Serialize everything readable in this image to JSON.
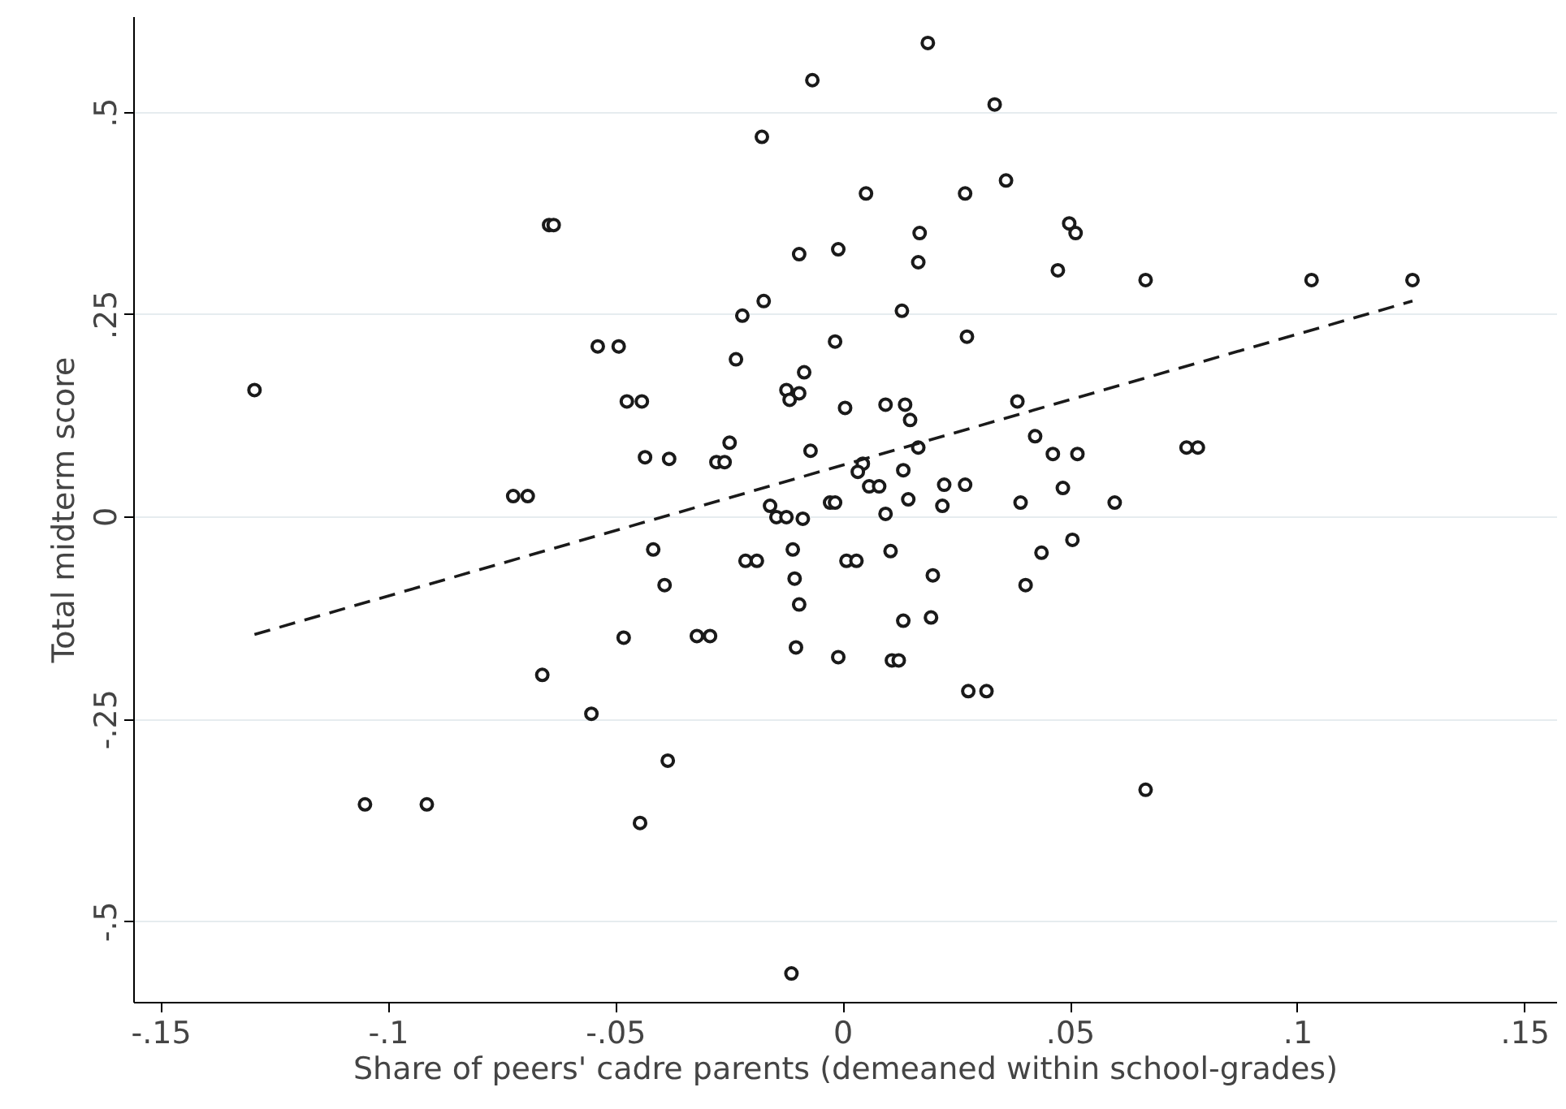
{
  "chart_data": {
    "type": "scatter",
    "xlabel": "Share of peers' cadre parents (demeaned within school-grades)",
    "ylabel": "Total midterm score",
    "xlim": [
      -0.156,
      0.157
    ],
    "ylim": [
      -0.6,
      0.618
    ],
    "xticks": [
      {
        "value": -0.15,
        "label": "-.15"
      },
      {
        "value": -0.1,
        "label": "-.1"
      },
      {
        "value": -0.05,
        "label": "-.05"
      },
      0,
      {
        "value": 0.05,
        "label": ".05"
      },
      {
        "value": 0.1,
        "label": ".1"
      },
      {
        "value": 0.15,
        "label": ".15"
      }
    ],
    "yticks": [
      {
        "value": -0.5,
        "label": "-.5"
      },
      {
        "value": -0.25,
        "label": "-.25"
      },
      0,
      {
        "value": 0.25,
        "label": ".25"
      },
      {
        "value": 0.5,
        "label": ".5"
      }
    ],
    "grid": "y",
    "series": [
      {
        "color": "#1a1a1a",
        "marker": "circle",
        "x": [
          0.0186,
          -0.0068,
          -0.0179,
          0.0333,
          0.005,
          0.0268,
          0.0358,
          -0.0647,
          -0.0637,
          0.0168,
          0.0497,
          0.0511,
          -0.0097,
          -0.0011,
          0.0165,
          0.0472,
          0.0665,
          0.103,
          0.1252,
          -0.0175,
          -0.0222,
          0.0129,
          0.0272,
          -0.0018,
          -0.054,
          -0.0494,
          -0.0236,
          -0.1295,
          -0.0125,
          -0.0097,
          -0.0086,
          -0.0476,
          -0.0443,
          -0.0118,
          0.0004,
          0.0093,
          0.0136,
          0.0383,
          0.0147,
          0.0165,
          0.0422,
          0.0755,
          0.078,
          -0.0072,
          -0.0436,
          -0.0383,
          -0.025,
          -0.0279,
          -0.0261,
          0.0461,
          0.0515,
          0.0043,
          0.0032,
          0.0132,
          0.0057,
          0.0079,
          0.0222,
          0.0268,
          0.0483,
          -0.0726,
          -0.0694,
          -0.0161,
          -0.0029,
          -0.0018,
          0.0143,
          0.0218,
          0.039,
          0.0597,
          -0.0147,
          -0.0125,
          -0.0089,
          0.0093,
          0.0504,
          -0.0418,
          -0.0111,
          0.0104,
          0.0436,
          -0.0215,
          -0.019,
          0.0007,
          0.0029,
          -0.0107,
          0.0197,
          -0.0393,
          0.0401,
          -0.0097,
          0.0132,
          0.0193,
          -0.0483,
          -0.0322,
          -0.0293,
          -0.0104,
          -0.0011,
          0.0107,
          0.0122,
          -0.0662,
          0.0275,
          0.0315,
          -0.0554,
          -0.0386,
          -0.1052,
          -0.0916,
          0.0665,
          -0.0447,
          -0.0114
        ],
        "values": [
          0.586,
          0.54,
          0.47,
          0.51,
          0.4,
          0.4,
          0.416,
          0.361,
          0.361,
          0.351,
          0.363,
          0.351,
          0.325,
          0.331,
          0.315,
          0.305,
          0.293,
          0.293,
          0.293,
          0.267,
          0.249,
          0.255,
          0.223,
          0.217,
          0.211,
          0.211,
          0.195,
          0.157,
          0.157,
          0.153,
          0.179,
          0.143,
          0.143,
          0.145,
          0.135,
          0.139,
          0.139,
          0.143,
          0.12,
          0.086,
          0.1,
          0.086,
          0.086,
          0.082,
          0.074,
          0.072,
          0.092,
          0.068,
          0.068,
          0.078,
          0.078,
          0.066,
          0.056,
          0.058,
          0.038,
          0.038,
          0.04,
          0.04,
          0.036,
          0.026,
          0.026,
          0.014,
          0.018,
          0.018,
          0.022,
          0.014,
          0.018,
          0.018,
          0.0,
          0.0,
          -0.002,
          0.004,
          -0.028,
          -0.04,
          -0.04,
          -0.042,
          -0.044,
          -0.054,
          -0.054,
          -0.054,
          -0.054,
          -0.076,
          -0.072,
          -0.084,
          -0.084,
          -0.108,
          -0.128,
          -0.124,
          -0.149,
          -0.147,
          -0.147,
          -0.161,
          -0.173,
          -0.177,
          -0.177,
          -0.195,
          -0.215,
          -0.215,
          -0.243,
          -0.301,
          -0.355,
          -0.355,
          -0.337,
          -0.378,
          -0.564
        ]
      },
      {
        "type": "line",
        "color": "#1a1a1a",
        "line_style": "dashed",
        "x": [
          -0.1295,
          0.1252
        ],
        "values": [
          -0.145,
          0.267
        ]
      }
    ]
  }
}
